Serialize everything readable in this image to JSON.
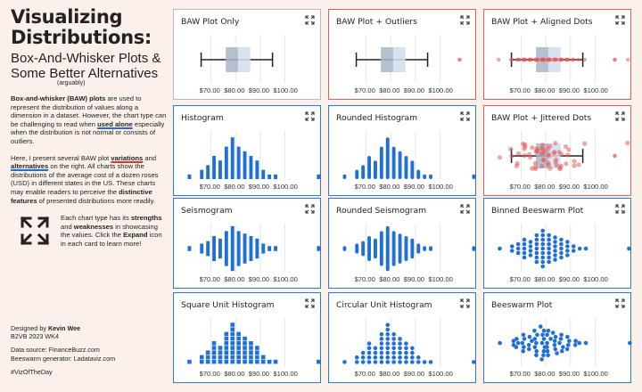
{
  "left": {
    "title_line1": "Visualizing",
    "title_line2": "Distributions:",
    "subtitle_line1": "Box-And-Whisker Plots &",
    "subtitle_line2": "Some Better Alternatives",
    "arguably": "(arguably)",
    "para1_a": "Box-and-whisker (BAW) plots",
    "para1_b": " are used to represent the distribution of values along a dimension in a dataset. However, the chart type can be challenging to read when ",
    "para1_c": "used alone",
    "para1_d": " especially when the distribution is not normal or consists of outliers.",
    "para2_a": "Here, I present several BAW plot ",
    "para2_b": "variations",
    "para2_c": " and ",
    "para2_d": "alternatives",
    "para2_e": " on the right. All charts show the distributions of the average cost of a dozen roses (USD) in different states in the US. These charts may enable readers to perceive the ",
    "para2_f": "distinctive features",
    "para2_g": " of presented distributions more readily.",
    "expand_a": "Each chart type has its ",
    "expand_b": "strengths",
    "expand_c": " and ",
    "expand_d": "weaknesses",
    "expand_e": " in showcasing the values. Click the ",
    "expand_f": "Expand",
    "expand_g": " icon in each card to learn more!"
  },
  "footer": {
    "designed_prefix": "Designed by ",
    "designer": "Kevin Wee",
    "event": "B2VB 2023 WK4",
    "source": "Data source: FinanceBuzz.com",
    "generator": "Beeswarm generator: Ladataviz.com",
    "hashtag": "#VizOfTheDay"
  },
  "axis_ticks": [
    "$70.00",
    "$80.00",
    "$90.00",
    "$100.00"
  ],
  "colors": {
    "blue": "#1f6fd6",
    "red": "#e35b5b",
    "gray": "#b9b9b9",
    "box_dark": "#aab5c8",
    "box_light": "#d3dcec"
  },
  "cards": [
    {
      "title": "BAW Plot Only",
      "kind": "baw",
      "border": "gray",
      "icon": "expand-icon"
    },
    {
      "title": "BAW Plot + Outliers",
      "kind": "baw-outlier",
      "border": "red",
      "icon": "expand-icon"
    },
    {
      "title": "BAW Plot + Aligned Dots",
      "kind": "baw-aligned",
      "border": "red",
      "icon": "expand-icon"
    },
    {
      "title": "Histogram",
      "kind": "histogram",
      "border": "blue",
      "icon": "expand-icon"
    },
    {
      "title": "Rounded Histogram",
      "kind": "rounded-histogram",
      "border": "blue",
      "icon": "expand-icon"
    },
    {
      "title": "BAW Plot + Jittered Dots",
      "kind": "baw-jitter",
      "border": "red",
      "icon": "expand-icon"
    },
    {
      "title": "Seismogram",
      "kind": "seismogram",
      "border": "blue",
      "icon": "expand-icon"
    },
    {
      "title": "Rounded Seismogram",
      "kind": "rounded-seismogram",
      "border": "blue",
      "icon": "expand-icon"
    },
    {
      "title": "Binned Beeswarm Plot",
      "kind": "binned-beeswarm",
      "border": "blue",
      "icon": "expand-icon"
    },
    {
      "title": "Square Unit Histogram",
      "kind": "square-unit",
      "border": "blue",
      "icon": "expand-icon"
    },
    {
      "title": "Circular Unit Histogram",
      "kind": "circle-unit",
      "border": "blue",
      "icon": "expand-icon"
    },
    {
      "title": "Beeswarm Plot",
      "kind": "beeswarm",
      "border": "blue",
      "icon": "expand-icon"
    }
  ],
  "distribution": {
    "axis_min": 60,
    "axis_max": 110,
    "bin_counts": [
      1,
      0,
      2,
      3,
      5,
      4,
      7,
      9,
      7,
      6,
      5,
      4,
      2,
      1,
      1,
      0,
      0,
      0,
      0,
      0,
      0,
      1
    ],
    "box_stats": {
      "min": 66,
      "q1": 76,
      "median": 81,
      "q3": 86,
      "max": 95,
      "outlier": 108
    }
  }
}
